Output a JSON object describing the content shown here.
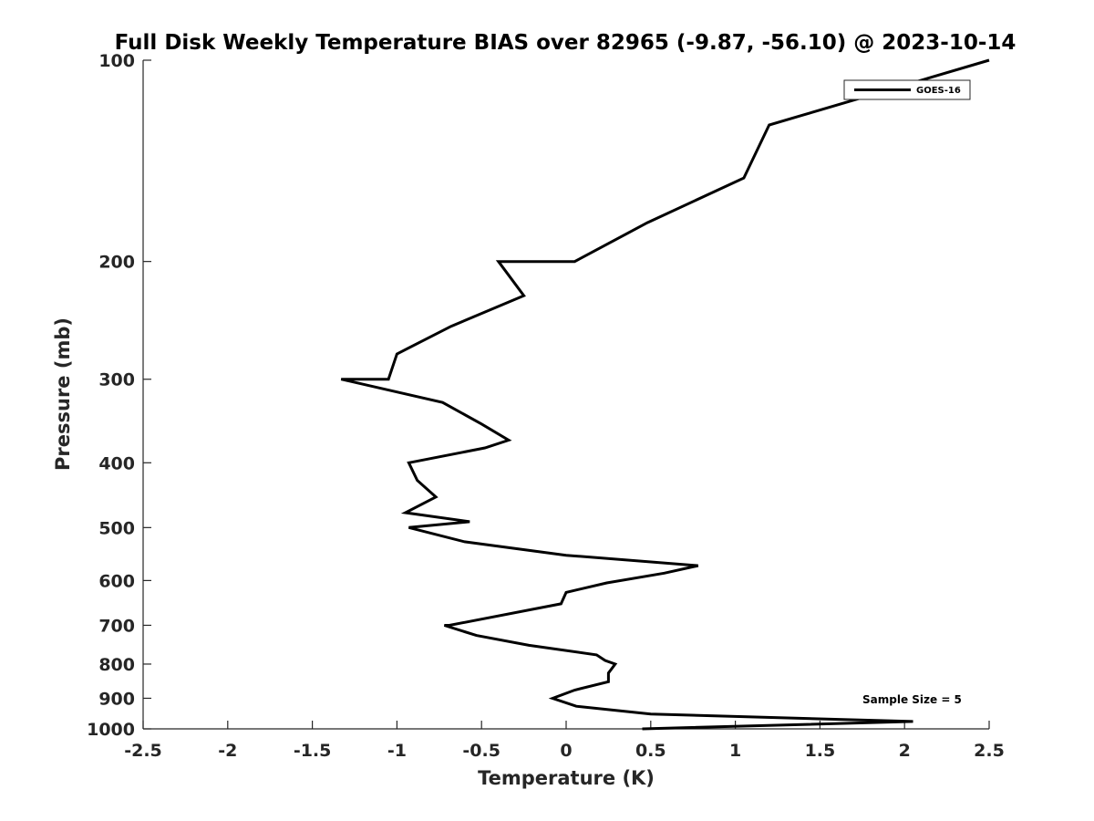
{
  "chart_data": {
    "type": "line",
    "title": "Full Disk Weekly Temperature BIAS over 82965 (-9.87, -56.10) @ 2023-10-14",
    "xlabel": "Temperature (K)",
    "ylabel": "Pressure (mb)",
    "xlim": [
      -2.5,
      2.5
    ],
    "ylim": [
      100,
      1000
    ],
    "y_scale": "log",
    "y_reversed": true,
    "x_ticks": [
      -2.5,
      -2,
      -1.5,
      -1,
      -0.5,
      0,
      0.5,
      1,
      1.5,
      2,
      2.5
    ],
    "x_tick_labels": [
      "-2.5",
      "-2",
      "-1.5",
      "-1",
      "-0.5",
      "0",
      "0.5",
      "1",
      "1.5",
      "2",
      "2.5"
    ],
    "y_ticks": [
      100,
      200,
      300,
      400,
      500,
      600,
      700,
      800,
      900,
      1000
    ],
    "y_tick_labels": [
      "100",
      "200",
      "300",
      "400",
      "500",
      "600",
      "700",
      "800",
      "900",
      "1000"
    ],
    "grid": false,
    "legend_position": "top-right",
    "series": [
      {
        "name": "GOES-16",
        "color": "#000000",
        "points": [
          {
            "x": 2.5,
            "y": 100
          },
          {
            "x": 1.2,
            "y": 125
          },
          {
            "x": 1.05,
            "y": 150
          },
          {
            "x": 0.48,
            "y": 175
          },
          {
            "x": 0.05,
            "y": 200
          },
          {
            "x": -0.4,
            "y": 200
          },
          {
            "x": -0.25,
            "y": 225
          },
          {
            "x": -0.68,
            "y": 250
          },
          {
            "x": -1.0,
            "y": 275
          },
          {
            "x": -1.05,
            "y": 300
          },
          {
            "x": -1.33,
            "y": 300
          },
          {
            "x": -0.73,
            "y": 325
          },
          {
            "x": -0.5,
            "y": 350
          },
          {
            "x": -0.34,
            "y": 370
          },
          {
            "x": -0.48,
            "y": 380
          },
          {
            "x": -0.93,
            "y": 400
          },
          {
            "x": -0.88,
            "y": 425
          },
          {
            "x": -0.77,
            "y": 450
          },
          {
            "x": -0.95,
            "y": 475
          },
          {
            "x": -0.57,
            "y": 490
          },
          {
            "x": -0.93,
            "y": 500
          },
          {
            "x": -0.6,
            "y": 525
          },
          {
            "x": 0.0,
            "y": 550
          },
          {
            "x": 0.78,
            "y": 570
          },
          {
            "x": 0.58,
            "y": 585
          },
          {
            "x": 0.24,
            "y": 605
          },
          {
            "x": 0.0,
            "y": 625
          },
          {
            "x": -0.03,
            "y": 650
          },
          {
            "x": -0.69,
            "y": 700
          },
          {
            "x": -0.72,
            "y": 700
          },
          {
            "x": -0.53,
            "y": 725
          },
          {
            "x": -0.22,
            "y": 750
          },
          {
            "x": 0.18,
            "y": 775
          },
          {
            "x": 0.23,
            "y": 790
          },
          {
            "x": 0.29,
            "y": 800
          },
          {
            "x": 0.25,
            "y": 825
          },
          {
            "x": 0.25,
            "y": 850
          },
          {
            "x": 0.05,
            "y": 875
          },
          {
            "x": -0.08,
            "y": 900
          },
          {
            "x": 0.06,
            "y": 925
          },
          {
            "x": 0.5,
            "y": 950
          },
          {
            "x": 2.05,
            "y": 975
          },
          {
            "x": 0.45,
            "y": 1000
          }
        ]
      }
    ],
    "annotations": [
      {
        "text": "Sample Size = 5",
        "position": "bottom-right"
      }
    ]
  }
}
